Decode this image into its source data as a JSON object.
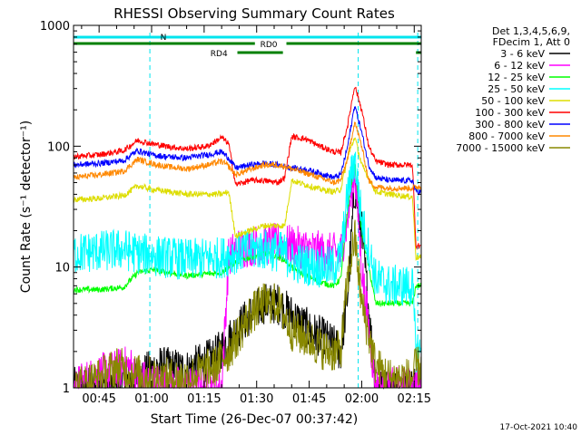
{
  "chart_data": {
    "type": "line",
    "title": "RHESSI Observing Summary Count Rates",
    "xlabel": "Start Time (26-Dec-07 00:37:42)",
    "ylabel": "Count Rate (s⁻¹ detector⁻¹)",
    "ylog": true,
    "ylim": [
      1,
      1000
    ],
    "xlim_minutes": [
      37.7,
      137.0
    ],
    "x_tick_labels": [
      {
        "t": 45,
        "label": "00:45"
      },
      {
        "t": 60,
        "label": "01:00"
      },
      {
        "t": 75,
        "label": "01:15"
      },
      {
        "t": 90,
        "label": "01:30"
      },
      {
        "t": 105,
        "label": "01:45"
      },
      {
        "t": 120,
        "label": "02:00"
      },
      {
        "t": 135,
        "label": "02:15"
      }
    ],
    "y_tick_labels": [
      {
        "v": 1,
        "label": "1"
      },
      {
        "v": 10,
        "label": "10"
      },
      {
        "v": 100,
        "label": "100"
      },
      {
        "v": 1000,
        "label": "1000"
      }
    ],
    "legend_position": "right",
    "legend_header": [
      "Det 1,3,4,5,6,9,",
      "FDecim 1, Att 0"
    ],
    "series": [
      {
        "name": "3 - 6 keV",
        "color": "#000000",
        "x": [
          37.7,
          50,
          55,
          62,
          70,
          78,
          82,
          88,
          92,
          96,
          100,
          105,
          110,
          114,
          116,
          118,
          120,
          124,
          128,
          134.5,
          135.5,
          137
        ],
        "y": [
          1,
          1,
          1.2,
          1.5,
          1.4,
          1.8,
          2.5,
          4,
          5,
          5,
          4,
          3,
          2.5,
          2,
          6,
          45,
          20,
          1,
          1,
          1,
          1,
          1
        ]
      },
      {
        "name": "6 - 12 keV",
        "color": "#ff00ff",
        "x": [
          37.7,
          40,
          45,
          50,
          52,
          54,
          56,
          60,
          70,
          80,
          82,
          84,
          88,
          92,
          96,
          100,
          105,
          110,
          114,
          116,
          118,
          120,
          124,
          128,
          134.5,
          135.5,
          137
        ],
        "y": [
          1,
          1.1,
          1.3,
          1.4,
          1.5,
          1.5,
          1.2,
          1.1,
          1,
          1,
          12,
          14,
          15,
          15.5,
          15.5,
          15,
          14,
          13,
          13,
          25,
          65,
          10,
          1,
          1,
          1,
          1,
          1
        ]
      },
      {
        "name": "12 - 25 keV",
        "color": "#00ff00",
        "x": [
          37.7,
          45,
          52,
          56,
          60,
          70,
          80,
          84,
          88,
          92,
          96,
          98,
          100,
          104,
          108,
          112,
          114,
          116,
          118,
          120,
          124,
          128,
          134.5,
          135.5,
          137
        ],
        "y": [
          6.5,
          6.5,
          6.8,
          9,
          9.5,
          8.5,
          9,
          11,
          12,
          13,
          12,
          11.5,
          10,
          8.5,
          7.5,
          7,
          8,
          30,
          70,
          20,
          5,
          5,
          5,
          7,
          7
        ]
      },
      {
        "name": "25 - 50 keV",
        "color": "#00ffff",
        "x": [
          37.7,
          45,
          52,
          56,
          60,
          70,
          80,
          84,
          88,
          92,
          96,
          98,
          100,
          104,
          108,
          112,
          114,
          116,
          118,
          120,
          124,
          128,
          134.5,
          135.5,
          137
        ],
        "y": [
          13,
          13.5,
          14,
          13,
          12.5,
          11.5,
          12,
          13,
          14,
          14,
          13.5,
          13,
          11,
          10.5,
          10,
          10,
          12,
          40,
          80,
          25,
          8,
          7,
          7,
          2,
          2
        ]
      },
      {
        "name": "50 - 100 keV",
        "color": "#dddd00",
        "x": [
          37.7,
          45,
          52,
          56,
          60,
          70,
          80,
          82,
          84,
          88,
          92,
          96,
          98,
          100,
          104,
          108,
          112,
          114,
          116,
          118,
          120,
          124,
          128,
          134.5,
          135.5,
          137
        ],
        "y": [
          36,
          37,
          39,
          47,
          44,
          40,
          40,
          42,
          18,
          20,
          22,
          22,
          22,
          52,
          48,
          44,
          42,
          44,
          80,
          120,
          70,
          42,
          40,
          38,
          12,
          12
        ]
      },
      {
        "name": "100 - 300 keV",
        "color": "#ff0000",
        "x": [
          37.7,
          45,
          52,
          56,
          60,
          64,
          70,
          76,
          80,
          82,
          84,
          88,
          92,
          96,
          98,
          100,
          104,
          108,
          112,
          114,
          116,
          118,
          120,
          122,
          124,
          128,
          134.5,
          135.5,
          137
        ],
        "y": [
          82,
          85,
          92,
          112,
          105,
          100,
          95,
          100,
          118,
          105,
          48,
          52,
          52,
          50,
          55,
          120,
          115,
          100,
          90,
          88,
          150,
          320,
          200,
          100,
          75,
          70,
          70,
          15,
          15
        ]
      },
      {
        "name": "300 - 800 keV",
        "color": "#0000ff",
        "x": [
          37.7,
          45,
          52,
          56,
          60,
          64,
          70,
          76,
          80,
          82,
          84,
          88,
          92,
          96,
          98,
          100,
          104,
          108,
          112,
          114,
          116,
          118,
          120,
          122,
          124,
          128,
          134.5,
          135.5,
          137
        ],
        "y": [
          70,
          72,
          76,
          92,
          85,
          82,
          80,
          85,
          90,
          80,
          66,
          70,
          72,
          70,
          68,
          66,
          64,
          60,
          55,
          58,
          100,
          220,
          130,
          70,
          55,
          52,
          52,
          42,
          42
        ]
      },
      {
        "name": "800 - 7000 keV",
        "color": "#ff8800",
        "x": [
          37.7,
          45,
          52,
          56,
          60,
          64,
          70,
          76,
          80,
          82,
          84,
          88,
          92,
          96,
          98,
          100,
          104,
          108,
          112,
          114,
          116,
          118,
          120,
          122,
          124,
          128,
          134.5,
          135.5,
          137
        ],
        "y": [
          55,
          58,
          62,
          78,
          72,
          68,
          65,
          70,
          75,
          68,
          58,
          64,
          70,
          70,
          68,
          65,
          60,
          55,
          50,
          52,
          80,
          160,
          100,
          52,
          46,
          45,
          45,
          46,
          46
        ]
      },
      {
        "name": "7000 - 15000 keV",
        "color": "#888800",
        "x": [
          37.7,
          45,
          50,
          55,
          62,
          70,
          78,
          82,
          88,
          92,
          96,
          100,
          105,
          110,
          114,
          116,
          118,
          120,
          124,
          128,
          134.5,
          135.5,
          137
        ],
        "y": [
          1,
          1.2,
          1.5,
          1.3,
          1.2,
          1.2,
          1.5,
          2,
          4,
          5,
          5,
          3,
          2.5,
          2,
          2,
          8,
          18,
          5,
          1.5,
          1.2,
          1.2,
          1.5,
          1.5
        ]
      }
    ],
    "annotations": {
      "n_label": "N",
      "rd0_label": "RD0",
      "rd4_label": "RD4",
      "n_color": "#00e5ee",
      "rd_color": "#008000"
    }
  },
  "footer": {
    "timestamp": "17-Oct-2021 10:40"
  }
}
